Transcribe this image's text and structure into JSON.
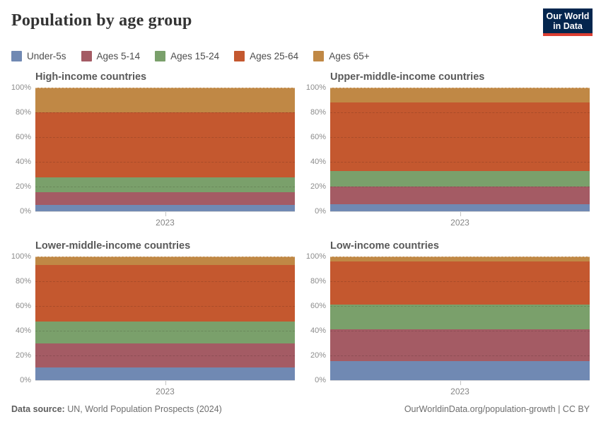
{
  "header": {
    "title": "Population by age group",
    "logo": {
      "line1": "Our World",
      "line2": "in Data"
    }
  },
  "legend": {
    "items": [
      {
        "label": "Under-5s",
        "color": "#7089b3"
      },
      {
        "label": "Ages 5-14",
        "color": "#a45b64"
      },
      {
        "label": "Ages 15-24",
        "color": "#7aa06b"
      },
      {
        "label": "Ages 25-64",
        "color": "#c4582f"
      },
      {
        "label": "Ages 65+",
        "color": "#c08845"
      }
    ]
  },
  "chart_data": [
    {
      "type": "area",
      "title": "High-income countries",
      "x": [
        "2023"
      ],
      "x_tick_label": "2023",
      "ylim": [
        0,
        100
      ],
      "y_ticks": [
        0,
        20,
        40,
        60,
        80,
        100
      ],
      "y_tick_suffix": "%",
      "grid": true,
      "series": [
        {
          "name": "Under-5s",
          "pct": 5.0
        },
        {
          "name": "Ages 5-14",
          "pct": 10.6
        },
        {
          "name": "Ages 15-24",
          "pct": 11.9
        },
        {
          "name": "Ages 25-64",
          "pct": 52.8
        },
        {
          "name": "Ages 65+",
          "pct": 19.7
        }
      ]
    },
    {
      "type": "area",
      "title": "Upper-middle-income countries",
      "x": [
        "2023"
      ],
      "x_tick_label": "2023",
      "ylim": [
        0,
        100
      ],
      "y_ticks": [
        0,
        20,
        40,
        60,
        80,
        100
      ],
      "y_tick_suffix": "%",
      "grid": true,
      "series": [
        {
          "name": "Under-5s",
          "pct": 5.7
        },
        {
          "name": "Ages 5-14",
          "pct": 14.3
        },
        {
          "name": "Ages 15-24",
          "pct": 12.5
        },
        {
          "name": "Ages 25-64",
          "pct": 55.8
        },
        {
          "name": "Ages 65+",
          "pct": 11.7
        }
      ]
    },
    {
      "type": "area",
      "title": "Lower-middle-income countries",
      "x": [
        "2023"
      ],
      "x_tick_label": "2023",
      "ylim": [
        0,
        100
      ],
      "y_ticks": [
        0,
        20,
        40,
        60,
        80,
        100
      ],
      "y_tick_suffix": "%",
      "grid": true,
      "series": [
        {
          "name": "Under-5s",
          "pct": 10.1
        },
        {
          "name": "Ages 5-14",
          "pct": 19.9
        },
        {
          "name": "Ages 15-24",
          "pct": 17.5
        },
        {
          "name": "Ages 25-64",
          "pct": 45.8
        },
        {
          "name": "Ages 65+",
          "pct": 6.7
        }
      ]
    },
    {
      "type": "area",
      "title": "Low-income countries",
      "x": [
        "2023"
      ],
      "x_tick_label": "2023",
      "ylim": [
        0,
        100
      ],
      "y_ticks": [
        0,
        20,
        40,
        60,
        80,
        100
      ],
      "y_tick_suffix": "%",
      "grid": true,
      "series": [
        {
          "name": "Under-5s",
          "pct": 15.2
        },
        {
          "name": "Ages 5-14",
          "pct": 26.1
        },
        {
          "name": "Ages 15-24",
          "pct": 20.0
        },
        {
          "name": "Ages 25-64",
          "pct": 34.7
        },
        {
          "name": "Ages 65+",
          "pct": 4.0
        }
      ]
    }
  ],
  "footer": {
    "source_label": "Data source:",
    "source_text": " UN, World Population Prospects (2024)",
    "credit": "OurWorldinData.org/population-growth | CC BY"
  }
}
